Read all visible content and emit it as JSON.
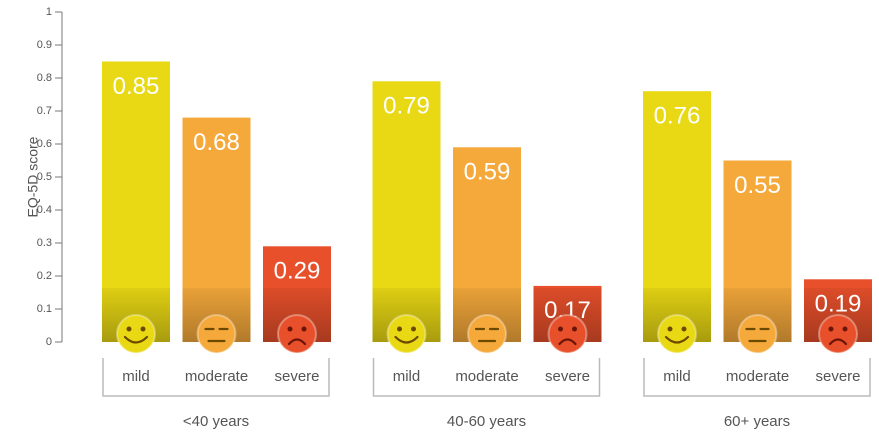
{
  "chart_data": {
    "type": "bar",
    "y_label": "EQ-5D score",
    "categories": [
      "<40 years",
      "40-60 years",
      "60+ years"
    ],
    "series": [
      {
        "name": "mild",
        "color": "#e9d814",
        "values": [
          0.85,
          0.79,
          0.76
        ]
      },
      {
        "name": "moderate",
        "color": "#f5a93b",
        "values": [
          0.68,
          0.59,
          0.55
        ]
      },
      {
        "name": "severe",
        "color": "#e8502b",
        "values": [
          0.29,
          0.17,
          0.19
        ]
      }
    ],
    "ylim": [
      0,
      1
    ],
    "yticks": [
      0,
      0.1,
      0.2,
      0.3,
      0.4,
      0.5,
      0.6,
      0.7,
      0.8,
      0.9,
      1
    ]
  }
}
